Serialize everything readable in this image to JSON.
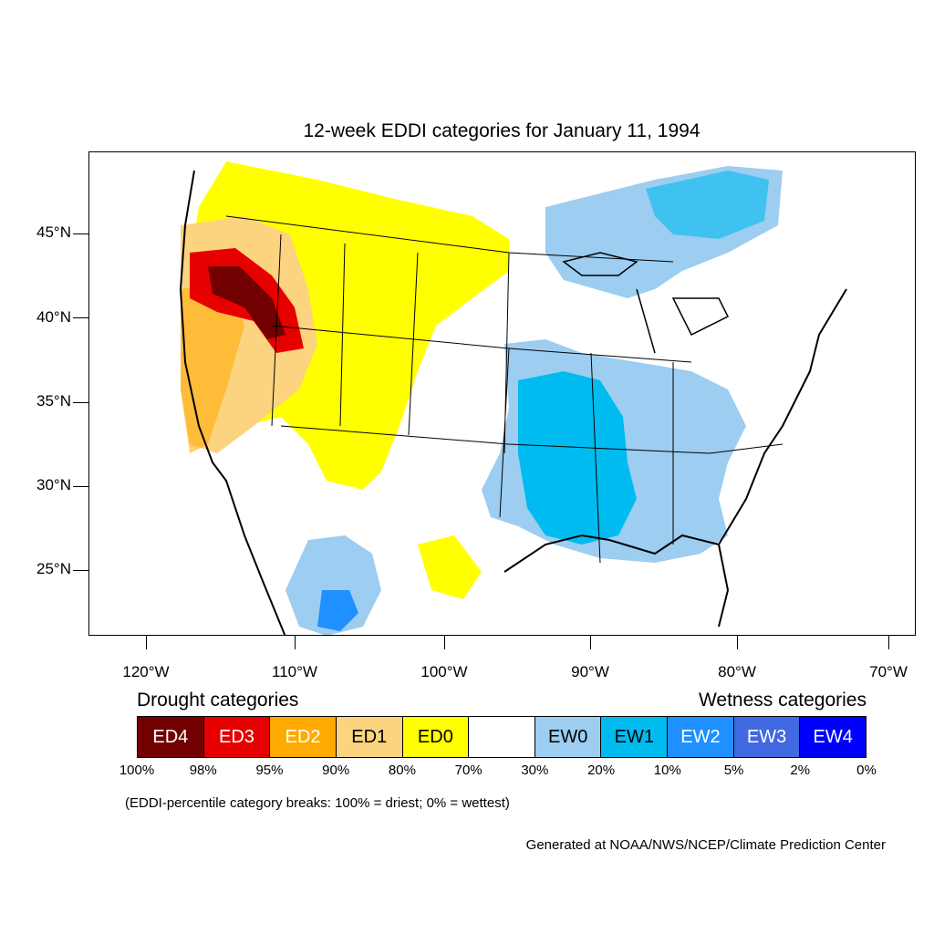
{
  "title": "12-week EDDI categories for January 11, 1994",
  "map": {
    "lon_range": [
      -124.5,
      -68.5
    ],
    "lat_range": [
      21,
      49.8
    ],
    "lat_ticks": [
      "45°N",
      "40°N",
      "35°N",
      "30°N",
      "25°N"
    ],
    "lon_ticks": [
      "120°W",
      "110°W",
      "100°W",
      "90°W",
      "80°W",
      "70°W"
    ],
    "regions": [
      {
        "name": "pacific-northwest-drought-region",
        "category": "ED1"
      },
      {
        "name": "great-basin-extreme-drought-region",
        "category": "ED4"
      },
      {
        "name": "northern-plains-drought-region",
        "category": "ED0"
      },
      {
        "name": "california-drought-region",
        "category": "ED2"
      },
      {
        "name": "mississippi-valley-wet-region",
        "category": "EW1"
      },
      {
        "name": "great-lakes-wet-region",
        "category": "EW0"
      },
      {
        "name": "mexico-wet-region",
        "category": "EW2"
      }
    ]
  },
  "legend": {
    "drought_label": "Drought categories",
    "wetness_label": "Wetness categories",
    "categories": [
      {
        "label": "ED4",
        "color": "#730000",
        "text_color": "#ffffff"
      },
      {
        "label": "ED3",
        "color": "#e60000",
        "text_color": "#ffffff"
      },
      {
        "label": "ED2",
        "color": "#ffaa00",
        "text_color": "#ffffff"
      },
      {
        "label": "ED1",
        "color": "#fcd37f",
        "text_color": "#000000"
      },
      {
        "label": "ED0",
        "color": "#ffff00",
        "text_color": "#000000"
      },
      {
        "label": "",
        "color": "#ffffff",
        "text_color": "#000000"
      },
      {
        "label": "EW0",
        "color": "#9dcdf0",
        "text_color": "#000000"
      },
      {
        "label": "EW1",
        "color": "#00bbf0",
        "text_color": "#000000"
      },
      {
        "label": "EW2",
        "color": "#1e90ff",
        "text_color": "#ffffff"
      },
      {
        "label": "EW3",
        "color": "#4169e1",
        "text_color": "#ffffff"
      },
      {
        "label": "EW4",
        "color": "#0000ff",
        "text_color": "#ffffff"
      }
    ],
    "breaks": [
      "100%",
      "98%",
      "95%",
      "90%",
      "80%",
      "70%",
      "30%",
      "20%",
      "10%",
      "5%",
      "2%",
      "0%"
    ]
  },
  "note": "(EDDI-percentile category breaks: 100% = driest; 0% = wettest)",
  "credit": "Generated at NOAA/NWS/NCEP/Climate Prediction Center"
}
